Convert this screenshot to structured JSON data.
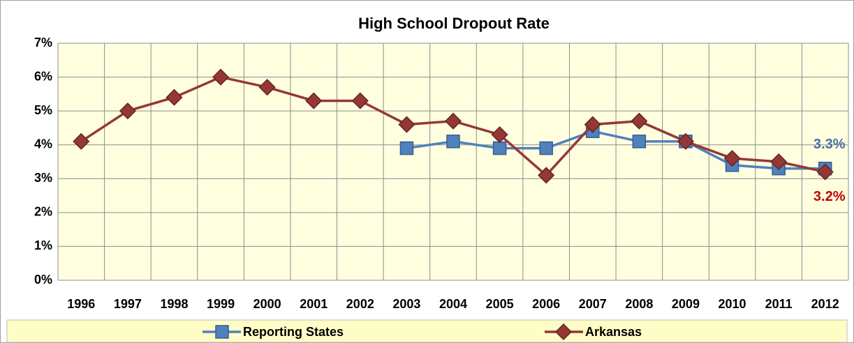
{
  "chart_data": {
    "type": "line",
    "title": "High School Dropout Rate",
    "categories": [
      "1996",
      "1997",
      "1998",
      "1999",
      "2000",
      "2001",
      "2002",
      "2003",
      "2004",
      "2005",
      "2006",
      "2007",
      "2008",
      "2009",
      "2010",
      "2011",
      "2012"
    ],
    "series": [
      {
        "name": "Reporting States",
        "color": "#4f81bd",
        "marker": "square",
        "values": [
          null,
          null,
          null,
          null,
          null,
          null,
          null,
          3.9,
          4.1,
          3.9,
          3.9,
          4.4,
          4.1,
          4.1,
          3.4,
          3.3,
          3.3
        ],
        "value_labels": [
          null,
          null,
          null,
          null,
          null,
          null,
          null,
          null,
          null,
          null,
          null,
          null,
          null,
          null,
          null,
          null,
          "3.3%"
        ],
        "label_color": "#4a6fa5"
      },
      {
        "name": "Arkansas",
        "color": "#953735",
        "marker": "diamond",
        "values": [
          4.1,
          5.0,
          5.4,
          6.0,
          5.7,
          5.3,
          5.3,
          4.6,
          4.7,
          4.3,
          3.1,
          4.6,
          4.7,
          4.1,
          3.6,
          3.5,
          3.2
        ],
        "value_labels": [
          null,
          null,
          null,
          null,
          null,
          null,
          null,
          null,
          null,
          null,
          null,
          null,
          null,
          null,
          null,
          null,
          "3.2%"
        ],
        "label_color": "#c00000"
      }
    ],
    "ylim": [
      0,
      7
    ],
    "yticks": [
      {
        "value": 0,
        "label": "0%"
      },
      {
        "value": 1,
        "label": "1%"
      },
      {
        "value": 2,
        "label": "2%"
      },
      {
        "value": 3,
        "label": "3%"
      },
      {
        "value": 4,
        "label": "4%"
      },
      {
        "value": 5,
        "label": "5%"
      },
      {
        "value": 6,
        "label": "6%"
      },
      {
        "value": 7,
        "label": "7%"
      }
    ],
    "grid": true,
    "legend": "bottom"
  }
}
